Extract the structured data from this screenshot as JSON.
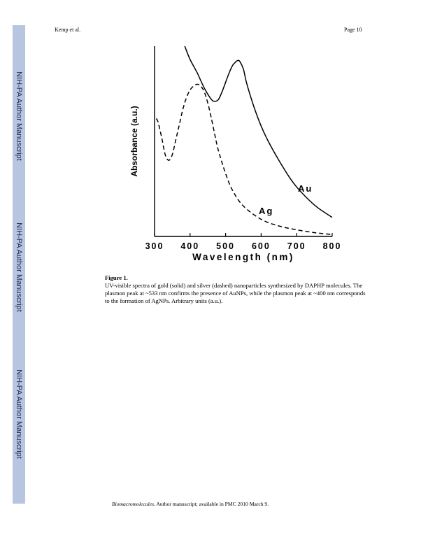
{
  "header": {
    "author": "Kemp et al.",
    "page": "Page 10"
  },
  "sidebar": {
    "label": "NIH-PA Author Manuscript"
  },
  "chart_data": {
    "type": "line",
    "xlabel": "Wavelength (nm)",
    "ylabel": "Absorbance (a.u.)",
    "xlim": [
      300,
      800
    ],
    "xticks": [
      "300",
      "400",
      "500",
      "600",
      "700",
      "800"
    ],
    "series": [
      {
        "name": "Au",
        "style": "solid",
        "x": [
          385,
          400,
          420,
          440,
          460,
          470,
          480,
          490,
          500,
          510,
          520,
          530,
          535,
          540,
          550,
          560,
          580,
          600,
          620,
          650,
          680,
          700,
          730,
          760,
          800
        ],
        "y": [
          1.0,
          0.93,
          0.86,
          0.78,
          0.72,
          0.71,
          0.72,
          0.76,
          0.81,
          0.86,
          0.9,
          0.92,
          0.925,
          0.92,
          0.88,
          0.8,
          0.68,
          0.58,
          0.5,
          0.4,
          0.31,
          0.26,
          0.2,
          0.15,
          0.1
        ]
      },
      {
        "name": "Ag",
        "style": "dashed",
        "x": [
          305,
          310,
          320,
          330,
          340,
          350,
          360,
          370,
          380,
          390,
          400,
          410,
          420,
          430,
          440,
          450,
          460,
          470,
          480,
          500,
          520,
          550,
          600,
          650,
          700,
          750,
          800
        ],
        "y": [
          0.62,
          0.6,
          0.52,
          0.43,
          0.4,
          0.43,
          0.51,
          0.59,
          0.67,
          0.73,
          0.77,
          0.79,
          0.8,
          0.79,
          0.76,
          0.7,
          0.62,
          0.53,
          0.45,
          0.33,
          0.24,
          0.16,
          0.09,
          0.055,
          0.035,
          0.02,
          0.01
        ]
      }
    ],
    "labels": [
      "Au",
      "Ag"
    ],
    "ylim": [
      0,
      1.0
    ]
  },
  "caption": {
    "title": "Figure 1.",
    "text": "UV-visible spectra of gold (solid) and silver (dashed) nanoparticles synthesized by DAPHP molecules. The plasmon peak at ~533 nm confirms the presence of AuNPs, while the plasmon peak at ~400 nm corresponds to the formation of AgNPs. Arbitrary units (a.u.)."
  },
  "footer": {
    "journal": "Biomacromolecules",
    "rest": ". Author manuscript; available in PMC 2010 March 9."
  }
}
